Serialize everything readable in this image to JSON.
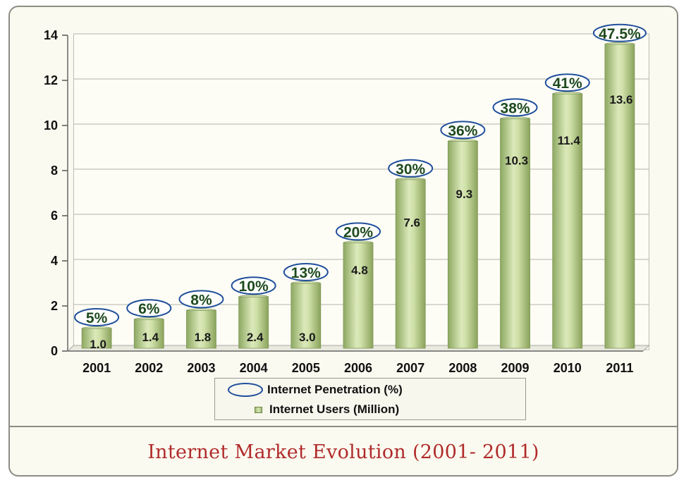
{
  "caption": "Internet Market Evolution (2001- 2011)",
  "legend": {
    "penetration_label": "Internet Penetration (%)",
    "users_label": "Internet Users (Million)"
  },
  "colors": {
    "background": "#fbfaf0",
    "bar": "#b9d08e",
    "ellipse_stroke": "#1f4e9a",
    "caption": "#b02b2b",
    "penetration_text": "#1d4a1d"
  },
  "chart_data": {
    "type": "bar",
    "categories": [
      "2001",
      "2002",
      "2003",
      "2004",
      "2005",
      "2006",
      "2007",
      "2008",
      "2009",
      "2010",
      "2011"
    ],
    "series": [
      {
        "name": "Internet Users (Million)",
        "values": [
          1.0,
          1.4,
          1.8,
          2.4,
          3.0,
          4.8,
          7.6,
          9.3,
          10.3,
          11.4,
          13.6
        ],
        "data_labels": [
          "1.0",
          "1.4",
          "1.8",
          "2.4",
          "3.0",
          "4.8",
          "7.6",
          "9.3",
          "10.3",
          "11.4",
          "13.6"
        ]
      },
      {
        "name": "Internet Penetration (%)",
        "values": [
          5,
          6,
          8,
          10,
          13,
          20,
          30,
          36,
          38,
          41,
          47.5
        ],
        "data_labels": [
          "5%",
          "6%",
          "8%",
          "10%",
          "13%",
          "20%",
          "30%",
          "36%",
          "38%",
          "41%",
          "47.5%"
        ]
      }
    ],
    "y_ticks": [
      "0",
      "2",
      "4",
      "6",
      "8",
      "10",
      "12",
      "14"
    ],
    "ylim": [
      0,
      14
    ],
    "grid": true,
    "legend_position": "bottom-center",
    "title": "",
    "xlabel": "",
    "ylabel": ""
  }
}
